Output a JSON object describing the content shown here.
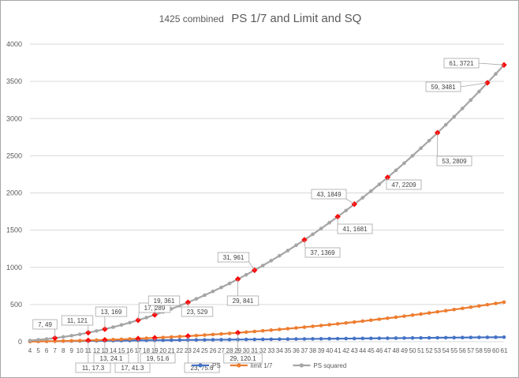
{
  "chart_data": {
    "type": "line",
    "title_prefix": "1425 combined",
    "title_main": "PS 1/7 and Limit and SQ",
    "title": "1425 combined PS 1/7 and Limit and SQ",
    "xlabel": "",
    "ylabel": "",
    "xlim": [
      4,
      61
    ],
    "ylim": [
      0,
      4000
    ],
    "yticks": [
      0,
      500,
      1000,
      1500,
      2000,
      2500,
      3000,
      3500,
      4000
    ],
    "grid": "horizontal",
    "legend_position": "bottom",
    "series": [
      {
        "name": "PS",
        "color": "#4472c4",
        "formula": "x",
        "x": [
          4,
          5,
          6,
          7,
          8,
          9,
          10,
          11,
          12,
          13,
          14,
          15,
          16,
          17,
          18,
          19,
          20,
          21,
          22,
          23,
          24,
          25,
          26,
          27,
          28,
          29,
          30,
          31,
          32,
          33,
          34,
          35,
          36,
          37,
          38,
          39,
          40,
          41,
          42,
          43,
          44,
          45,
          46,
          47,
          48,
          49,
          50,
          51,
          52,
          53,
          54,
          55,
          56,
          57,
          58,
          59,
          60,
          61
        ],
        "values": [
          4,
          5,
          6,
          7,
          8,
          9,
          10,
          11,
          12,
          13,
          14,
          15,
          16,
          17,
          18,
          19,
          20,
          21,
          22,
          23,
          24,
          25,
          26,
          27,
          28,
          29,
          30,
          31,
          32,
          33,
          34,
          35,
          36,
          37,
          38,
          39,
          40,
          41,
          42,
          43,
          44,
          45,
          46,
          47,
          48,
          49,
          50,
          51,
          52,
          53,
          54,
          55,
          56,
          57,
          58,
          59,
          60,
          61
        ]
      },
      {
        "name": "limit 1/7",
        "color": "#ed7d31",
        "formula": "x^2/7",
        "x": [
          4,
          5,
          6,
          7,
          8,
          9,
          10,
          11,
          12,
          13,
          14,
          15,
          16,
          17,
          18,
          19,
          20,
          21,
          22,
          23,
          24,
          25,
          26,
          27,
          28,
          29,
          30,
          31,
          32,
          33,
          34,
          35,
          36,
          37,
          38,
          39,
          40,
          41,
          42,
          43,
          44,
          45,
          46,
          47,
          48,
          49,
          50,
          51,
          52,
          53,
          54,
          55,
          56,
          57,
          58,
          59,
          60,
          61
        ],
        "values": [
          2.3,
          3.6,
          5.1,
          7,
          9.1,
          11.6,
          14.3,
          17.3,
          20.6,
          24.1,
          28,
          32.1,
          36.6,
          41.3,
          46.3,
          51.6,
          57.1,
          63,
          69.1,
          75.6,
          82.3,
          89.3,
          96.6,
          104.1,
          112,
          120.1,
          128.6,
          137.3,
          146.3,
          155.6,
          165.1,
          175,
          185.1,
          195.6,
          206.3,
          217.3,
          228.6,
          240.1,
          252,
          264.1,
          276.6,
          289.3,
          302.3,
          315.6,
          329.1,
          343,
          357.1,
          371.6,
          386.3,
          401.3,
          416.6,
          432.1,
          448,
          464.1,
          480.6,
          497.3,
          514.3,
          531.6
        ]
      },
      {
        "name": "PS squared",
        "color": "#a5a5a5",
        "formula": "x^2",
        "x": [
          4,
          5,
          6,
          7,
          8,
          9,
          10,
          11,
          12,
          13,
          14,
          15,
          16,
          17,
          18,
          19,
          20,
          21,
          22,
          23,
          24,
          25,
          26,
          27,
          28,
          29,
          30,
          31,
          32,
          33,
          34,
          35,
          36,
          37,
          38,
          39,
          40,
          41,
          42,
          43,
          44,
          45,
          46,
          47,
          48,
          49,
          50,
          51,
          52,
          53,
          54,
          55,
          56,
          57,
          58,
          59,
          60,
          61
        ],
        "values": [
          16,
          25,
          36,
          49,
          64,
          81,
          100,
          121,
          144,
          169,
          196,
          225,
          256,
          289,
          324,
          361,
          400,
          441,
          484,
          529,
          576,
          625,
          676,
          729,
          784,
          841,
          900,
          961,
          1024,
          1089,
          1156,
          1225,
          1296,
          1369,
          1444,
          1521,
          1600,
          1681,
          1764,
          1849,
          1936,
          2025,
          2116,
          2209,
          2304,
          2401,
          2500,
          2601,
          2704,
          2809,
          2916,
          3025,
          3136,
          3249,
          3364,
          3481,
          3600,
          3721
        ]
      }
    ],
    "highlight_color": "#ff0000",
    "annotations": [
      {
        "text": "7, 49",
        "x": 7,
        "y": 49
      },
      {
        "text": "11, 121",
        "x": 11,
        "y": 121
      },
      {
        "text": "13, 169",
        "x": 13,
        "y": 169
      },
      {
        "text": "17, 289",
        "x": 17,
        "y": 289
      },
      {
        "text": "19, 361",
        "x": 19,
        "y": 361
      },
      {
        "text": "23, 529",
        "x": 23,
        "y": 529
      },
      {
        "text": "29, 841",
        "x": 29,
        "y": 841
      },
      {
        "text": "31, 961",
        "x": 31,
        "y": 961
      },
      {
        "text": "37, 1369",
        "x": 37,
        "y": 1369
      },
      {
        "text": "41, 1681",
        "x": 41,
        "y": 1681
      },
      {
        "text": "43, 1849",
        "x": 43,
        "y": 1849
      },
      {
        "text": "47, 2209",
        "x": 47,
        "y": 2209
      },
      {
        "text": "53, 2809",
        "x": 53,
        "y": 2809
      },
      {
        "text": "59, 3481",
        "x": 59,
        "y": 3481
      },
      {
        "text": "61, 3721",
        "x": 61,
        "y": 3721
      },
      {
        "text": "11, 17.3",
        "x": 11,
        "y": 17.3
      },
      {
        "text": "13, 24.1",
        "x": 13,
        "y": 24.1
      },
      {
        "text": "17, 41.3",
        "x": 17,
        "y": 41.3
      },
      {
        "text": "19, 51.6",
        "x": 19,
        "y": 51.6
      },
      {
        "text": "23, 75.6",
        "x": 23,
        "y": 75.6
      },
      {
        "text": "29, 120.1",
        "x": 29,
        "y": 120.1
      }
    ]
  }
}
